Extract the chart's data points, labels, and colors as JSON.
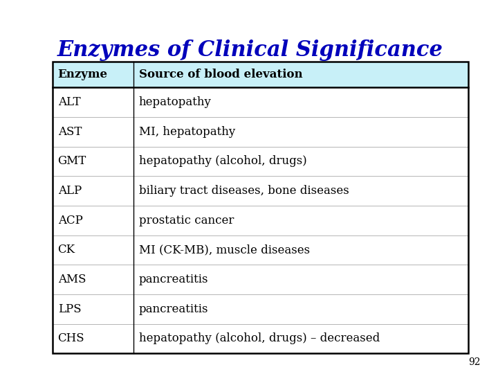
{
  "title": "Enzymes of Clinical Significance",
  "title_color": "#0000bb",
  "title_fontsize": 22,
  "background_color": "#ffffff",
  "header_bg_color": "#c8f0f8",
  "header_text_color": "#000000",
  "header_fontsize": 12,
  "body_fontsize": 12,
  "table_border_color": "#000000",
  "enzymes": [
    "ALT",
    "AST",
    "GMT",
    "ALP",
    "ACP",
    "CK",
    "AMS",
    "LPS",
    "CHS"
  ],
  "sources": [
    "hepatopathy",
    "MI, hepatopathy",
    "hepatopathy (alcohol, drugs)",
    "biliary tract diseases, bone diseases",
    "prostatic cancer",
    "MI (CK-MB), muscle diseases",
    "pancreatitis",
    "pancreatitis",
    "hepatopathy (alcohol, drugs) – decreased"
  ],
  "col1_header": "Enzyme",
  "col2_header": "Source of blood elevation",
  "page_number": "92",
  "fig_width": 7.2,
  "fig_height": 5.4,
  "fig_dpi": 100
}
